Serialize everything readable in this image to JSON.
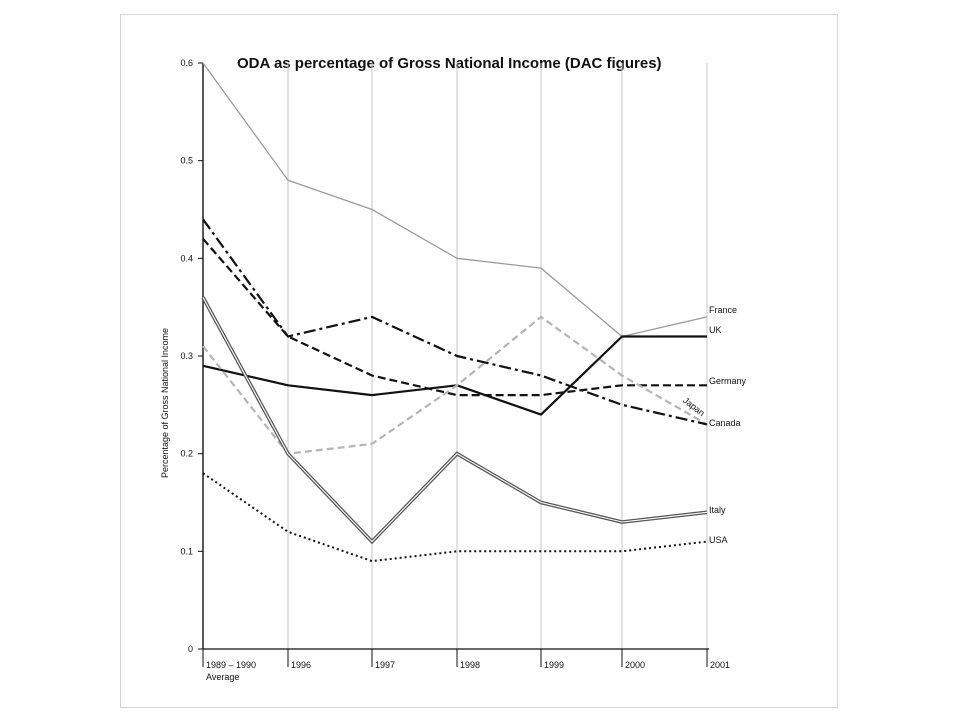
{
  "chart_data": {
    "type": "line",
    "title": "ODA as percentage of Gross National Income (DAC figures)",
    "ylabel": "Percentage of Gross National Income",
    "xlabel": "",
    "categories": [
      "1989 – 1990",
      "1996",
      "1997",
      "1998",
      "1999",
      "2000",
      "2001"
    ],
    "category_sublabels": [
      "Average",
      "",
      "",
      "",
      "",
      "",
      ""
    ],
    "ylim": [
      0,
      0.6
    ],
    "yticks": [
      "0",
      "0.1",
      "0.2",
      "0.3",
      "0.4",
      "0.5",
      "0.6"
    ],
    "ytick_values": [
      0,
      0.1,
      0.2,
      0.3,
      0.4,
      0.5,
      0.6
    ],
    "grid": "vertical",
    "series": [
      {
        "name": "France",
        "values": [
          0.6,
          0.48,
          0.45,
          0.4,
          0.39,
          0.32,
          0.34
        ],
        "color": "#9a9a9a",
        "style": "solid-thin"
      },
      {
        "name": "UK",
        "values": [
          0.29,
          0.27,
          0.26,
          0.27,
          0.24,
          0.32,
          0.32
        ],
        "color": "#111111",
        "style": "solid"
      },
      {
        "name": "Germany",
        "values": [
          0.42,
          0.32,
          0.28,
          0.26,
          0.26,
          0.27,
          0.27
        ],
        "color": "#111111",
        "style": "dashed"
      },
      {
        "name": "Japan",
        "values": [
          0.31,
          0.2,
          0.21,
          0.27,
          0.34,
          0.28,
          0.23
        ],
        "color": "#b5b5b5",
        "style": "dashed-light"
      },
      {
        "name": "Canada",
        "values": [
          0.44,
          0.32,
          0.34,
          0.3,
          0.28,
          0.25,
          0.23
        ],
        "color": "#111111",
        "style": "dashdot"
      },
      {
        "name": "Italy",
        "values": [
          0.36,
          0.2,
          0.11,
          0.2,
          0.15,
          0.13,
          0.14
        ],
        "color": "#555555",
        "style": "double"
      },
      {
        "name": "USA",
        "values": [
          0.18,
          0.12,
          0.09,
          0.1,
          0.1,
          0.1,
          0.11
        ],
        "color": "#111111",
        "style": "dotted"
      }
    ]
  }
}
